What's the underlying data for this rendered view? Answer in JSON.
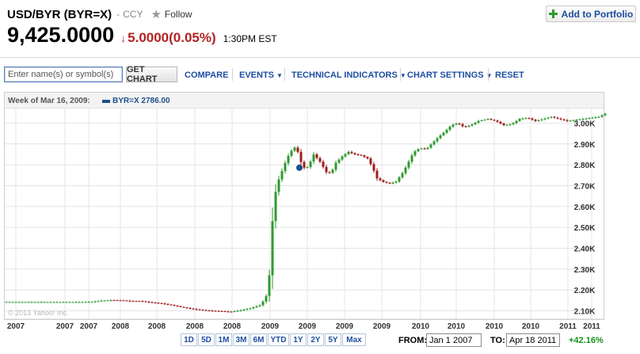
{
  "header": {
    "pair": "USD/BYR (BYR=X)",
    "separator": "-",
    "type": "CCY",
    "follow_label": "Follow",
    "add_to_portfolio": "Add to Portfolio"
  },
  "quote": {
    "price": "9,425.0000",
    "change": "5.0000(0.05%)",
    "direction": "down",
    "time": "1:30PM EST",
    "change_color": "#b22222"
  },
  "toolbar": {
    "symbol_placeholder": "Enter name(s) or symbol(s)",
    "get_chart": "GET CHART",
    "compare": "COMPARE",
    "events": "EVENTS",
    "technical_indicators": "TECHNICAL INDICATORS",
    "chart_settings": "CHART SETTINGS",
    "reset": "RESET",
    "link_color": "#1d4ea0"
  },
  "legend": {
    "week": "Week of Mar 16, 2009:",
    "series": "BYR=X 2786.00",
    "series_color": "#1b4f8c"
  },
  "copyright": "© 2013 Yahoo! Inc.",
  "range": {
    "buttons": [
      "1D",
      "5D",
      "1M",
      "3M",
      "6M",
      "YTD",
      "1Y",
      "2Y",
      "5Y",
      "Max"
    ],
    "from_label": "FROM:",
    "from_value": "Jan 1 2007",
    "to_label": "TO:",
    "to_value": "Apr 18 2011",
    "pct_change": "+42.16%"
  },
  "chart_data": {
    "type": "candlestick",
    "title": "",
    "xlabel": "",
    "ylabel": "",
    "y_ticks": [
      "2.10K",
      "2.20K",
      "2.30K",
      "2.40K",
      "2.50K",
      "2.60K",
      "2.70K",
      "2.80K",
      "2.90K",
      "3.00K"
    ],
    "x_ticks": [
      "2007",
      "2007",
      "2007",
      "2008",
      "2008",
      "2008",
      "2008",
      "2009",
      "2009",
      "2009",
      "2009",
      "2010",
      "2010",
      "2010",
      "2010",
      "2011",
      "2011"
    ],
    "ylim": [
      2060,
      3070
    ],
    "grid": true,
    "up_color": "#2f9a2f",
    "down_color": "#a01c1c",
    "series_name": "BYR=X",
    "highlight": {
      "week": "Week of Mar 16, 2009",
      "value": 2786.0
    },
    "price_path": [
      [
        0,
        2142
      ],
      [
        100,
        2142
      ],
      [
        112,
        2143
      ],
      [
        125,
        2149
      ],
      [
        137,
        2151
      ],
      [
        150,
        2150
      ],
      [
        162,
        2147
      ],
      [
        175,
        2146
      ],
      [
        187,
        2140
      ],
      [
        200,
        2135
      ],
      [
        212,
        2128
      ],
      [
        225,
        2118
      ],
      [
        237,
        2110
      ],
      [
        250,
        2104
      ],
      [
        262,
        2100
      ],
      [
        275,
        2098
      ],
      [
        287,
        2095
      ],
      [
        300,
        2103
      ],
      [
        312,
        2112
      ],
      [
        325,
        2128
      ],
      [
        330,
        2155
      ],
      [
        335,
        2195
      ],
      [
        338,
        2420
      ],
      [
        342,
        2640
      ],
      [
        348,
        2730
      ],
      [
        355,
        2800
      ],
      [
        362,
        2860
      ],
      [
        370,
        2890
      ],
      [
        375,
        2820
      ],
      [
        380,
        2786
      ],
      [
        385,
        2790
      ],
      [
        392,
        2850
      ],
      [
        400,
        2815
      ],
      [
        408,
        2765
      ],
      [
        414,
        2760
      ],
      [
        420,
        2810
      ],
      [
        428,
        2840
      ],
      [
        436,
        2862
      ],
      [
        444,
        2850
      ],
      [
        452,
        2845
      ],
      [
        460,
        2830
      ],
      [
        466,
        2790
      ],
      [
        472,
        2735
      ],
      [
        480,
        2718
      ],
      [
        488,
        2710
      ],
      [
        496,
        2720
      ],
      [
        504,
        2760
      ],
      [
        510,
        2800
      ],
      [
        518,
        2860
      ],
      [
        526,
        2880
      ],
      [
        534,
        2875
      ],
      [
        542,
        2905
      ],
      [
        550,
        2935
      ],
      [
        558,
        2960
      ],
      [
        566,
        2990
      ],
      [
        574,
        3000
      ],
      [
        582,
        2980
      ],
      [
        590,
        2990
      ],
      [
        600,
        3010
      ],
      [
        612,
        3020
      ],
      [
        622,
        3010
      ],
      [
        632,
        2990
      ],
      [
        642,
        2995
      ],
      [
        652,
        3020
      ],
      [
        662,
        3025
      ],
      [
        672,
        3010
      ],
      [
        682,
        3020
      ],
      [
        692,
        3030
      ],
      [
        702,
        3020
      ],
      [
        712,
        3010
      ],
      [
        722,
        3015
      ],
      [
        732,
        3020
      ],
      [
        742,
        3025
      ],
      [
        752,
        3030
      ],
      [
        760,
        3045
      ]
    ]
  }
}
